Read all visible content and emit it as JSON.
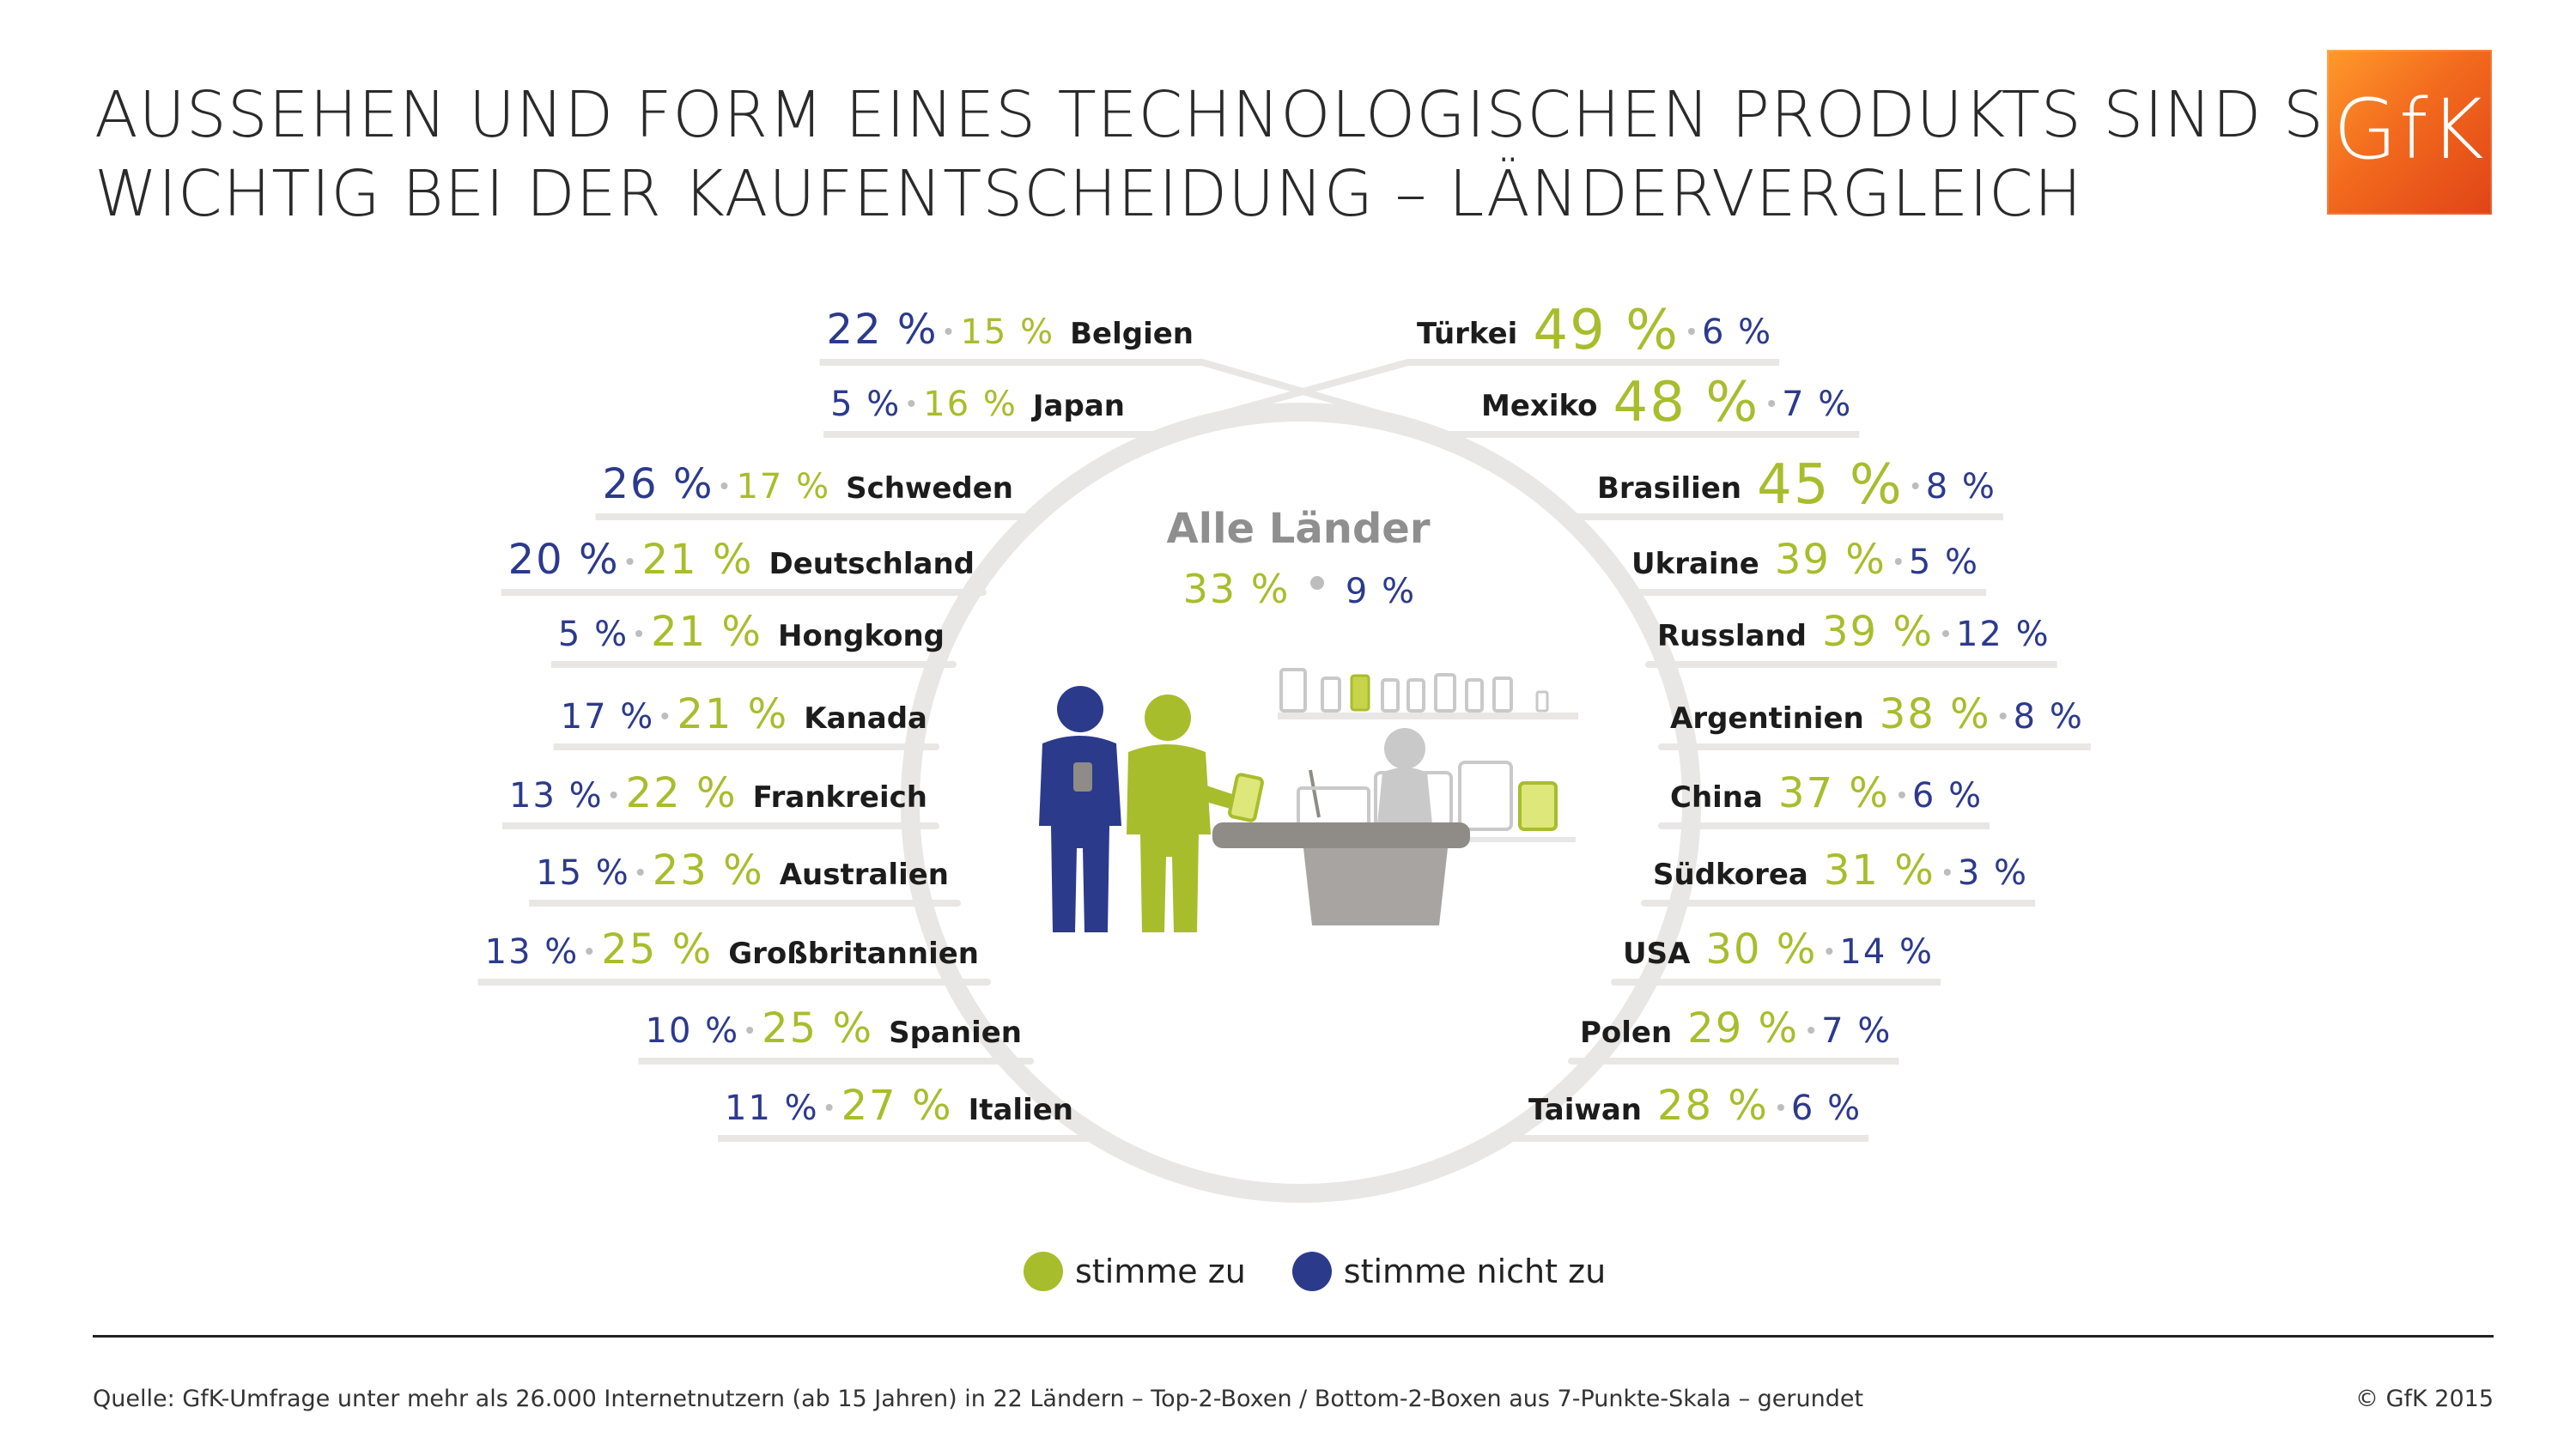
{
  "header": {
    "title_line1": "AUSSEHEN UND FORM EINES TECHNOLOGISCHEN PRODUKTS SIND SEHR",
    "title_line2": "WICHTIG BEI DER KAUFENTSCHEIDUNG – LÄNDERVERGLEICH",
    "logo_text": "GfK"
  },
  "colors": {
    "agree": "#a8bd2c",
    "disagree": "#2c3a8c",
    "ring": "#e8e7e5",
    "logo": "#f26a1e"
  },
  "chart_data": {
    "type": "table",
    "overall": {
      "label": "Alle Länder",
      "agree": "33 %",
      "disagree": "9 %"
    },
    "left": [
      {
        "country": "Belgien",
        "disagree": "22 %",
        "agree": "15 %"
      },
      {
        "country": "Japan",
        "disagree": "5 %",
        "agree": "16 %"
      },
      {
        "country": "Schweden",
        "disagree": "26 %",
        "agree": "17 %"
      },
      {
        "country": "Deutschland",
        "disagree": "20 %",
        "agree": "21 %"
      },
      {
        "country": "Hongkong",
        "disagree": "5 %",
        "agree": "21 %"
      },
      {
        "country": "Kanada",
        "disagree": "17 %",
        "agree": "21 %"
      },
      {
        "country": "Frankreich",
        "disagree": "13 %",
        "agree": "22 %"
      },
      {
        "country": "Australien",
        "disagree": "15 %",
        "agree": "23 %"
      },
      {
        "country": "Großbritannien",
        "disagree": "13 %",
        "agree": "25 %"
      },
      {
        "country": "Spanien",
        "disagree": "10 %",
        "agree": "25 %"
      },
      {
        "country": "Italien",
        "disagree": "11 %",
        "agree": "27 %"
      }
    ],
    "right": [
      {
        "country": "Türkei",
        "agree": "49 %",
        "disagree": "6 %"
      },
      {
        "country": "Mexiko",
        "agree": "48 %",
        "disagree": "7 %"
      },
      {
        "country": "Brasilien",
        "agree": "45 %",
        "disagree": "8 %"
      },
      {
        "country": "Ukraine",
        "agree": "39 %",
        "disagree": "5 %"
      },
      {
        "country": "Russland",
        "agree": "39 %",
        "disagree": "12 %"
      },
      {
        "country": "Argentinien",
        "agree": "38 %",
        "disagree": "8 %"
      },
      {
        "country": "China",
        "agree": "37 %",
        "disagree": "6 %"
      },
      {
        "country": "Südkorea",
        "agree": "31 %",
        "disagree": "3 %"
      },
      {
        "country": "USA",
        "agree": "30 %",
        "disagree": "14 %"
      },
      {
        "country": "Polen",
        "agree": "29 %",
        "disagree": "7 %"
      },
      {
        "country": "Taiwan",
        "agree": "28 %",
        "disagree": "6 %"
      }
    ]
  },
  "legend": {
    "agree_label": "stimme zu",
    "disagree_label": "stimme nicht zu"
  },
  "footer": {
    "source": "Quelle: GfK-Umfrage unter mehr als 26.000 Internetnutzern (ab 15 Jahren) in 22 Ländern – Top-2-Boxen / Bottom-2-Boxen aus 7-Punkte-Skala – gerundet",
    "copyright": "© GfK 2015"
  }
}
